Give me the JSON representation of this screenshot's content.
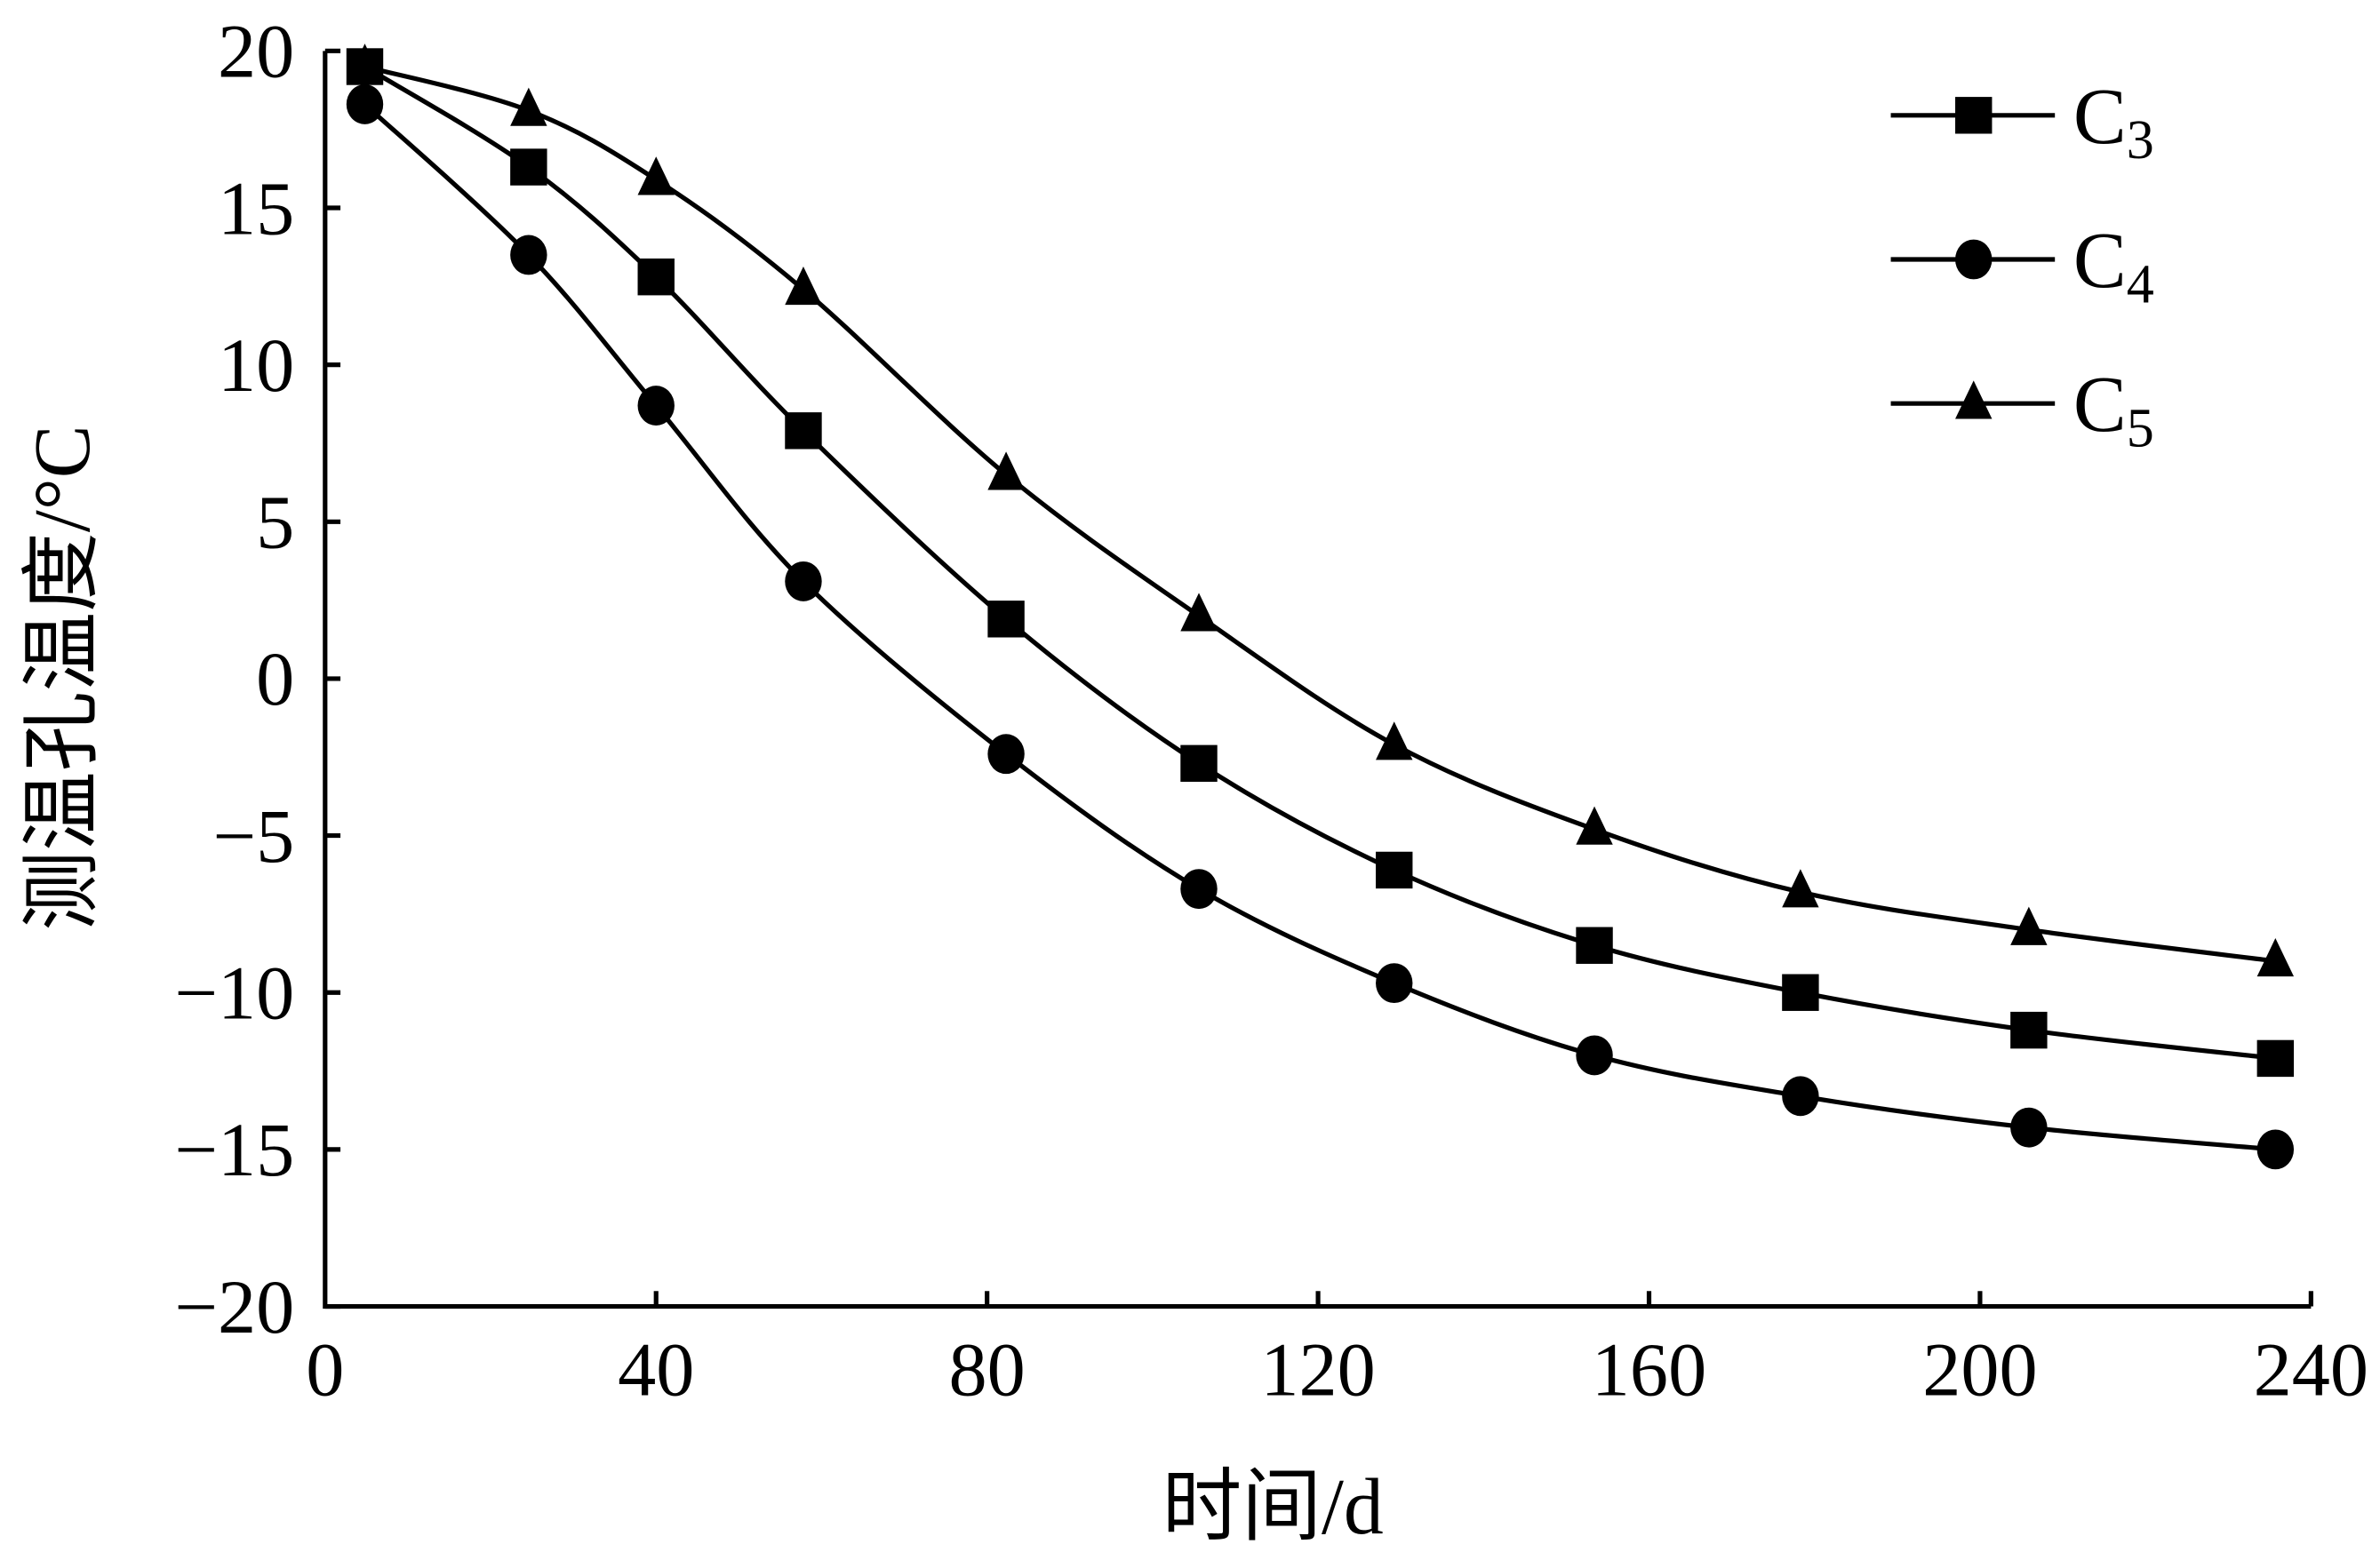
{
  "chart_data": {
    "type": "line",
    "title": "",
    "xlabel": "时间/d",
    "ylabel": "测温孔温度/°C",
    "xlim": [
      0,
      240
    ],
    "ylim": [
      -20,
      20
    ],
    "xticks": [
      0,
      40,
      80,
      120,
      160,
      200,
      240
    ],
    "yticks": [
      20,
      15,
      10,
      5,
      0,
      -5,
      -10,
      -15,
      -20
    ],
    "xtick_labels": [
      "0",
      "40",
      "80",
      "120",
      "160",
      "200",
      "240"
    ],
    "ytick_labels": [
      "20",
      "15",
      "10",
      "5",
      "0",
      "−5",
      "−10",
      "−15",
      "−20"
    ],
    "grid": false,
    "legend_position": "top-right",
    "x": [
      4.8,
      24.6,
      40,
      57.8,
      82.3,
      105.6,
      129.2,
      153.4,
      178.3,
      205.9,
      235.7
    ],
    "series": [
      {
        "name": "C3",
        "label_main": "C",
        "label_sub": "3",
        "marker": "square",
        "values": [
          19.5,
          16.3,
          12.8,
          7.9,
          1.9,
          -2.7,
          -6.1,
          -8.5,
          -10.0,
          -11.2,
          -12.1
        ]
      },
      {
        "name": "C4",
        "label_main": "C",
        "label_sub": "4",
        "marker": "circle",
        "values": [
          18.3,
          13.5,
          8.7,
          3.1,
          -2.4,
          -6.7,
          -9.7,
          -12.0,
          -13.3,
          -14.3,
          -15.0
        ]
      },
      {
        "name": "C5",
        "label_main": "C",
        "label_sub": "5",
        "marker": "triangle",
        "values": [
          19.5,
          18.1,
          15.9,
          12.4,
          6.5,
          2.0,
          -2.1,
          -4.8,
          -6.8,
          -8.0,
          -9.0
        ]
      }
    ]
  }
}
